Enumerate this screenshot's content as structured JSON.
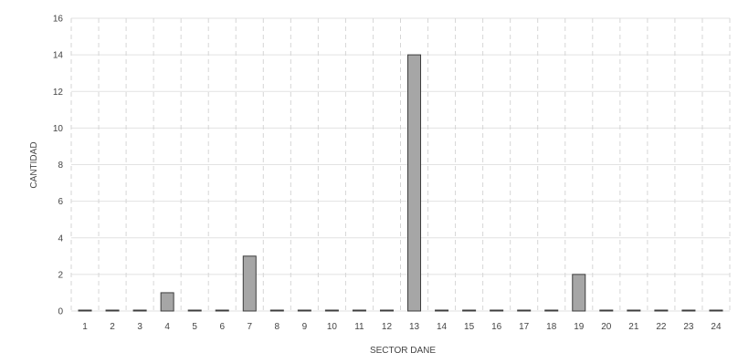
{
  "chart_data": {
    "type": "bar",
    "title": "",
    "xlabel": "SECTOR DANE",
    "ylabel": "CANTIDAD",
    "categories": [
      "1",
      "2",
      "3",
      "4",
      "5",
      "6",
      "7",
      "8",
      "9",
      "10",
      "11",
      "12",
      "13",
      "14",
      "15",
      "16",
      "17",
      "18",
      "19",
      "20",
      "21",
      "22",
      "23",
      "24"
    ],
    "values": [
      0,
      0,
      0,
      1,
      0,
      0,
      3,
      0,
      0,
      0,
      0,
      0,
      14,
      0,
      0,
      0,
      0,
      0,
      2,
      0,
      0,
      0,
      0,
      0
    ],
    "ylim": [
      0,
      16
    ],
    "yticks": [
      "0",
      "2",
      "4",
      "6",
      "8",
      "10",
      "12",
      "14",
      "16"
    ],
    "grid": true,
    "legend": "none",
    "colors": {
      "bar_fill": "#a6a6a6",
      "bar_stroke": "#3c3c3c",
      "gridline_horizontal": "#e2e2e2",
      "gridline_vertical": "#d6d6d6",
      "text": "#444444"
    }
  }
}
